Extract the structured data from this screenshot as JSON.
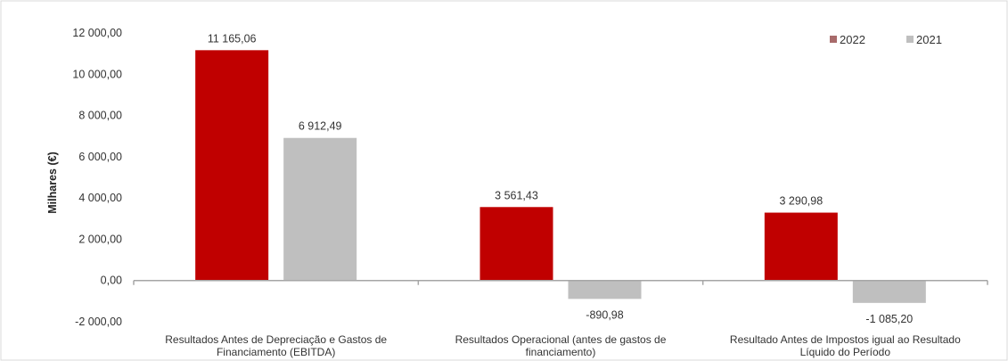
{
  "chart_data": {
    "type": "bar",
    "categories": [
      [
        "Resultados Antes de Depreciação e Gastos de",
        "Financiamento (EBITDA)"
      ],
      [
        "Resultados Operacional (antes de gastos de",
        "financiamento)"
      ],
      [
        "Resultado Antes de Impostos igual ao Resultado",
        "Líquido do Período"
      ]
    ],
    "series": [
      {
        "name": "2022",
        "color": "#c00000",
        "values": [
          11165.06,
          3561.43,
          3290.98
        ],
        "labels": [
          "11 165,06",
          "3 561,43",
          "3 290,98"
        ]
      },
      {
        "name": "2021",
        "color": "#bfbfbf",
        "values": [
          6912.49,
          -890.98,
          -1085.2
        ],
        "labels": [
          "6 912,49",
          "-890,98",
          "-1 085,20"
        ]
      }
    ],
    "ylabel": "Milhares (€)",
    "ylim": [
      -2000,
      12000
    ],
    "yticks": [
      12000,
      10000,
      8000,
      6000,
      4000,
      2000,
      0,
      -2000
    ],
    "ytick_labels": [
      "12 000,00",
      "10 000,00",
      "8 000,00",
      "6 000,00",
      "4 000,00",
      "2 000,00",
      "0,00",
      "-2 000,00"
    ],
    "grid": false,
    "legend_position": "top-right"
  }
}
